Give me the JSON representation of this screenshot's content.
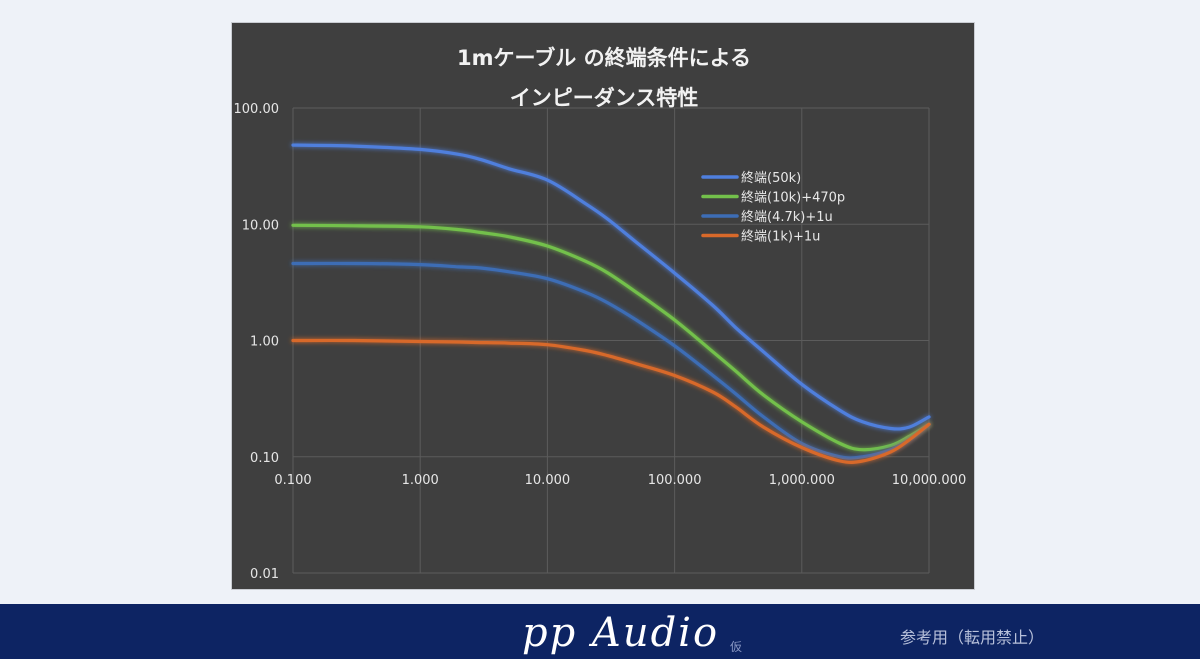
{
  "chart_data": {
    "type": "line",
    "title": [
      "1mケーブル の終端条件による",
      "インピーダンス特性"
    ],
    "x_scale": "log",
    "y_scale": "log",
    "xlim": [
      0.1,
      10000
    ],
    "ylim": [
      0.01,
      100
    ],
    "x_ticks": [
      0.1,
      1,
      10,
      100,
      1000,
      10000
    ],
    "x_tick_labels": [
      "0.100",
      "1.000",
      "10.000",
      "100.000",
      "1,000.000",
      "10,000.000"
    ],
    "y_ticks": [
      0.01,
      0.1,
      1,
      10,
      100
    ],
    "y_tick_labels": [
      "0.01",
      "0.10",
      "1.00",
      "10.00",
      "100.00"
    ],
    "grid": true,
    "legend_position": "upper-right",
    "background_color": "#3f3f3f",
    "series": [
      {
        "name": "終端(50k)",
        "color": "#4f7fdd",
        "x": [
          0.1,
          0.3,
          1,
          2,
          3,
          5,
          10,
          20,
          30,
          50,
          100,
          200,
          300,
          500,
          1000,
          2000,
          3000,
          5000,
          7000,
          10000
        ],
        "y": [
          48,
          47,
          44,
          40,
          36,
          30,
          24,
          15,
          11,
          7,
          3.8,
          2.0,
          1.3,
          0.8,
          0.42,
          0.25,
          0.2,
          0.175,
          0.18,
          0.22
        ]
      },
      {
        "name": "終端(10k)+470p",
        "color": "#73c04b",
        "x": [
          0.1,
          0.3,
          1,
          2,
          3,
          5,
          10,
          20,
          30,
          50,
          100,
          200,
          300,
          500,
          1000,
          2000,
          3000,
          5000,
          7000,
          10000
        ],
        "y": [
          9.8,
          9.7,
          9.5,
          9.0,
          8.5,
          7.8,
          6.5,
          4.8,
          3.8,
          2.6,
          1.5,
          0.8,
          0.55,
          0.34,
          0.2,
          0.13,
          0.115,
          0.125,
          0.15,
          0.19
        ]
      },
      {
        "name": "終端(4.7k)+1u",
        "color": "#3d6db5",
        "x": [
          0.1,
          0.3,
          1,
          2,
          3,
          5,
          10,
          20,
          30,
          50,
          100,
          200,
          300,
          500,
          1000,
          2000,
          3000,
          5000,
          7000,
          10000
        ],
        "y": [
          4.6,
          4.6,
          4.5,
          4.3,
          4.2,
          3.9,
          3.4,
          2.6,
          2.1,
          1.5,
          0.9,
          0.5,
          0.35,
          0.22,
          0.13,
          0.1,
          0.1,
          0.115,
          0.14,
          0.19
        ]
      },
      {
        "name": "終端(1k)+1u",
        "color": "#d8692a",
        "x": [
          0.1,
          0.3,
          1,
          2,
          3,
          5,
          10,
          20,
          30,
          50,
          100,
          200,
          300,
          500,
          1000,
          2000,
          3000,
          5000,
          7000,
          10000
        ],
        "y": [
          1.0,
          1.0,
          0.98,
          0.97,
          0.96,
          0.95,
          0.92,
          0.82,
          0.74,
          0.63,
          0.5,
          0.36,
          0.27,
          0.18,
          0.12,
          0.092,
          0.092,
          0.11,
          0.14,
          0.19
        ]
      }
    ]
  },
  "footer": {
    "logo": "pp Audio",
    "logo_sub": "仮",
    "note": "参考用（転用禁止）",
    "background_color": "#0d2463"
  }
}
